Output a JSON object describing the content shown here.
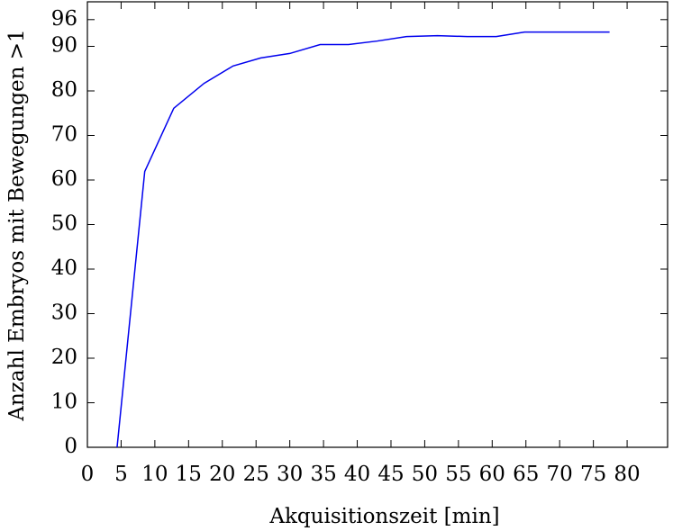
{
  "chart_data": {
    "type": "line",
    "xlabel": "Akquisitionszeit [min]",
    "ylabel": "Anzahl Embryos mit Bewegungen >1",
    "x": [
      4.4,
      8.5,
      12.8,
      17.3,
      21.6,
      25.7,
      30.0,
      34.5,
      38.7,
      43.0,
      47.3,
      51.9,
      56.3,
      60.6,
      64.8,
      77.4
    ],
    "series": [
      {
        "color": "#0000ee",
        "values": [
          0,
          61.9,
          76.1,
          81.7,
          85.6,
          87.4,
          88.4,
          90.4,
          90.4,
          91.2,
          92.2,
          92.4,
          92.2,
          92.2,
          93.2,
          93.2
        ]
      }
    ],
    "xlim": [
      0,
      86
    ],
    "ylim": [
      0,
      100
    ],
    "xticks": [
      0,
      5,
      10,
      15,
      20,
      25,
      30,
      35,
      40,
      45,
      50,
      55,
      60,
      65,
      70,
      75,
      80
    ],
    "yticks": [
      0,
      10,
      20,
      30,
      40,
      50,
      60,
      70,
      80,
      90,
      96
    ]
  }
}
